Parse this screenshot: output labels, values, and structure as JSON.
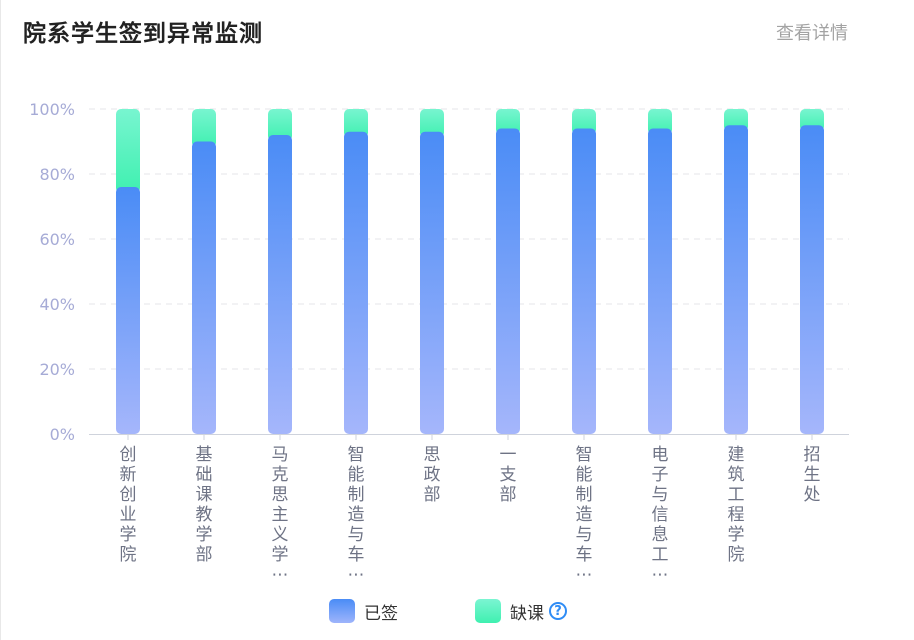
{
  "header": {
    "title": "院系学生签到异常监测",
    "detail_link": "查看详情"
  },
  "chart_data": {
    "type": "bar",
    "stacked": true,
    "categories": [
      "创新创业学院",
      "基础课教学部",
      "马克思主义学…",
      "智能制造与车…",
      "思政部",
      "一支部",
      "智能制造与车…",
      "电子与信息工…",
      "建筑工程学院",
      "招生处"
    ],
    "series": [
      {
        "name": "已签",
        "values": [
          76,
          90,
          92,
          93,
          93,
          94,
          94,
          94,
          95,
          95
        ],
        "color": "#4a8cf6"
      },
      {
        "name": "缺课",
        "values": [
          24,
          10,
          8,
          7,
          7,
          6,
          6,
          6,
          5,
          5
        ],
        "color": "#4ef0b6"
      }
    ],
    "y_ticks": [
      "0%",
      "20%",
      "40%",
      "60%",
      "80%",
      "100%"
    ],
    "ylim": [
      0,
      100
    ],
    "grid": true,
    "legend_position": "bottom-center"
  },
  "legend": {
    "signed_label": "已签",
    "absent_label": "缺课",
    "help_icon": "question-circle-icon"
  }
}
